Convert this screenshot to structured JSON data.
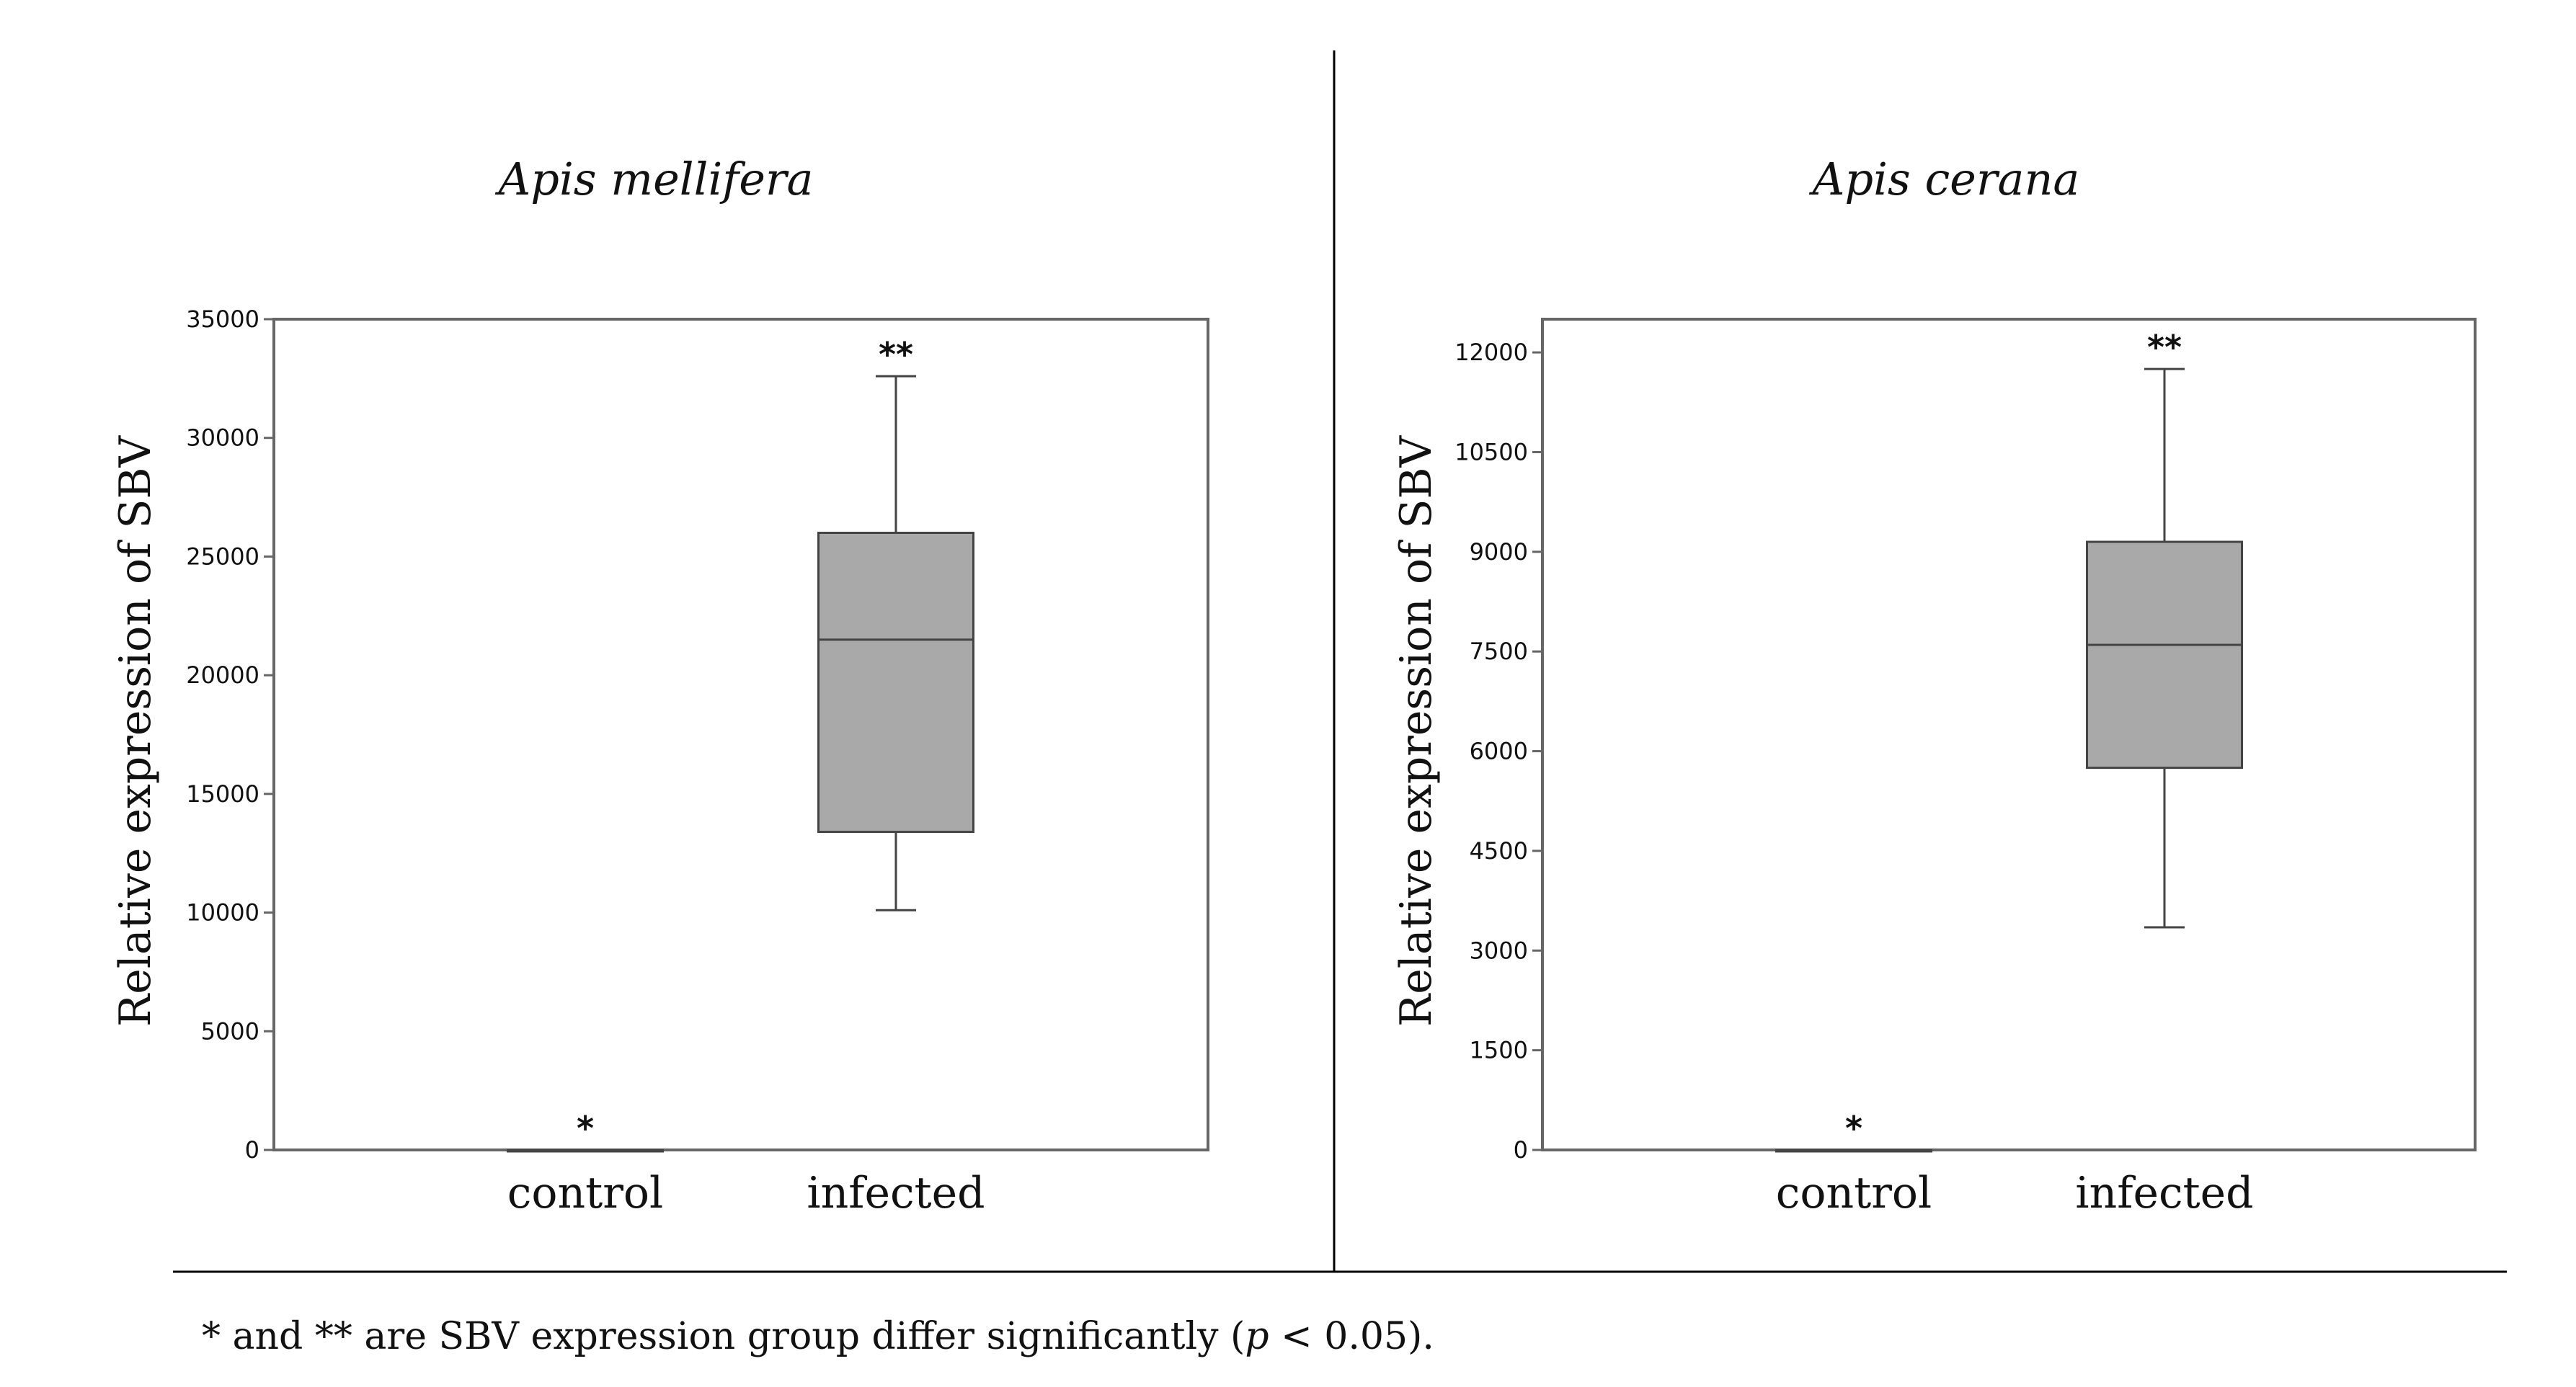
{
  "chart_data": [
    {
      "type": "box",
      "title": "Apis mellifera",
      "ylabel": "Relative expression of SBV",
      "xlabel": "",
      "categories": [
        "control",
        "infected"
      ],
      "ylim": [
        0,
        35000
      ],
      "yticks": [
        0,
        5000,
        10000,
        15000,
        20000,
        25000,
        30000,
        35000
      ],
      "ytick_labels": [
        "0",
        "5000",
        "10000",
        "15000",
        "20000",
        "25000",
        "30000",
        "35000"
      ],
      "boxes": [
        {
          "category": "control",
          "min": 0,
          "q1": 0,
          "median": 0,
          "q3": 0,
          "max": 0
        },
        {
          "category": "infected",
          "min": 10100,
          "q1": 13400,
          "median": 21500,
          "q3": 26000,
          "max": 32600
        }
      ],
      "annotations": [
        {
          "category": "control",
          "text": "*"
        },
        {
          "category": "infected",
          "text": "**"
        }
      ],
      "grid": false,
      "box_color": "#a9a9a9"
    },
    {
      "type": "box",
      "title": "Apis cerana",
      "ylabel": "Relative expression of SBV",
      "xlabel": "",
      "categories": [
        "control",
        "infected"
      ],
      "ylim": [
        0,
        12500
      ],
      "yticks": [
        0,
        1500,
        3000,
        4500,
        6000,
        7500,
        9000,
        10500,
        12000
      ],
      "ytick_labels": [
        "0",
        "1500",
        "3000",
        "4500",
        "6000",
        "7500",
        "9000",
        "10500",
        "12000"
      ],
      "boxes": [
        {
          "category": "control",
          "min": 0,
          "q1": 0,
          "median": 0,
          "q3": 0,
          "max": 0
        },
        {
          "category": "infected",
          "min": 3350,
          "q1": 5750,
          "median": 7600,
          "q3": 9150,
          "max": 11750
        }
      ],
      "annotations": [
        {
          "category": "control",
          "text": "*"
        },
        {
          "category": "infected",
          "text": "**"
        }
      ],
      "grid": false,
      "box_color": "#a9a9a9"
    }
  ],
  "footnote": {
    "prefix": "* and ** are SBV expression group differ significantly (",
    "p_symbol": "p",
    "suffix": " < 0.05)."
  }
}
